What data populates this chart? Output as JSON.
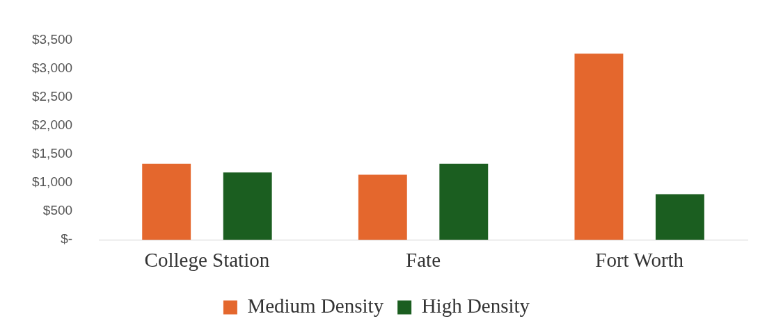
{
  "chart_data": {
    "type": "bar",
    "categories": [
      "College Station",
      "Fate",
      "Fort Worth"
    ],
    "series": [
      {
        "name": "Medium Density",
        "color": "#e4672d",
        "values": [
          1330,
          1140,
          3260
        ]
      },
      {
        "name": "High Density",
        "color": "#1b5e20",
        "values": [
          1180,
          1330,
          800
        ]
      }
    ],
    "ylim": [
      0,
      3500
    ],
    "yticks": [
      {
        "value": 0,
        "label": "$-"
      },
      {
        "value": 500,
        "label": "$500"
      },
      {
        "value": 1000,
        "label": "$1,000"
      },
      {
        "value": 1500,
        "label": "$1,500"
      },
      {
        "value": 2000,
        "label": "$2,000"
      },
      {
        "value": 2500,
        "label": "$2,500"
      },
      {
        "value": 3000,
        "label": "$3,000"
      },
      {
        "value": 3500,
        "label": "$3,500"
      }
    ],
    "grid": false,
    "legend": "bottom"
  }
}
